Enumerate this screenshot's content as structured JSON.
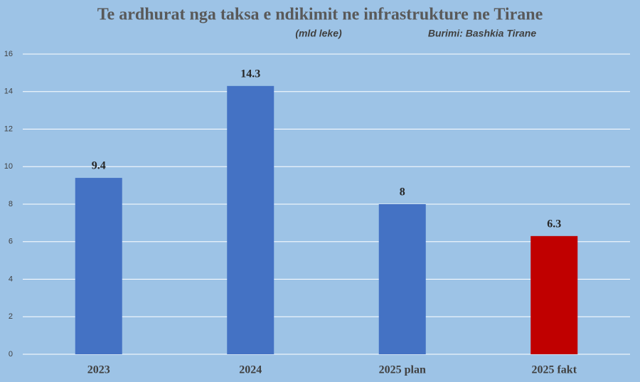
{
  "chart_data": {
    "type": "bar",
    "title": "Te ardhurat nga taksa e ndikimit ne infrastrukture ne Tirane",
    "subtitle": "(mld leke)",
    "source": "Burimi: Bashkia Tirane",
    "categories": [
      "2023",
      "2024",
      "2025 plan",
      "2025 fakt"
    ],
    "values": [
      9.4,
      14.3,
      8,
      6.3
    ],
    "colors": [
      "#4472c4",
      "#4472c4",
      "#4472c4",
      "#c00000"
    ],
    "ylim": [
      0,
      16
    ],
    "yticks": [
      0,
      2,
      4,
      6,
      8,
      10,
      12,
      14,
      16
    ],
    "grid": true
  }
}
